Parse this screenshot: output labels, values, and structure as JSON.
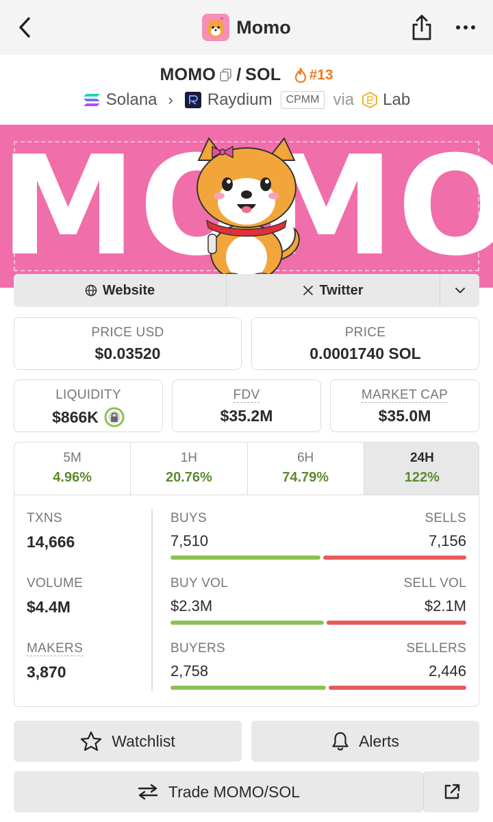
{
  "nav": {
    "title": "Momo"
  },
  "pair": {
    "base": "MOMO",
    "separator": "/",
    "quote": "SOL",
    "rank": "#13"
  },
  "chain": {
    "network": "Solana",
    "dex": "Raydium",
    "pool_type": "CPMM",
    "via": "via",
    "launchpad": "Lab"
  },
  "banner": {
    "text": "MOMO"
  },
  "links": {
    "website": "Website",
    "twitter": "Twitter"
  },
  "prices": {
    "price_usd_label": "PRICE USD",
    "price_usd": "$0.03520",
    "price_label": "PRICE",
    "price_sol": "0.0001740 SOL"
  },
  "metrics": {
    "liquidity_label": "LIQUIDITY",
    "liquidity": "$866K",
    "fdv_label": "FDV",
    "fdv": "$35.2M",
    "mcap_label": "MARKET CAP",
    "mcap": "$35.0M"
  },
  "timeframes": [
    {
      "label": "5M",
      "change": "4.96%"
    },
    {
      "label": "1H",
      "change": "20.76%"
    },
    {
      "label": "6H",
      "change": "74.79%"
    },
    {
      "label": "24H",
      "change": "122%"
    }
  ],
  "stats": {
    "txns_label": "TXNS",
    "txns": "14,666",
    "volume_label": "VOLUME",
    "volume": "$4.4M",
    "makers_label": "MAKERS",
    "makers": "3,870"
  },
  "splits": {
    "buys_label": "BUYS",
    "buys": "7,510",
    "sells_label": "SELLS",
    "sells": "7,156",
    "buy_share": 0.512,
    "buy_vol_label": "BUY VOL",
    "buy_vol": "$2.3M",
    "sell_vol_label": "SELL VOL",
    "sell_vol": "$2.1M",
    "buy_vol_share": 0.523,
    "buyers_label": "BUYERS",
    "buyers": "2,758",
    "sellers_label": "SELLERS",
    "sellers": "2,446",
    "buyers_share": 0.53
  },
  "actions": {
    "watchlist": "Watchlist",
    "alerts": "Alerts",
    "trade": "Trade MOMO/SOL"
  },
  "colors": {
    "banner_bg": "#f06eaa",
    "positive": "#5d8a2f",
    "buy_bar": "#8cc152",
    "sell_bar": "#e85a5a",
    "rank": "#f07a1e"
  }
}
